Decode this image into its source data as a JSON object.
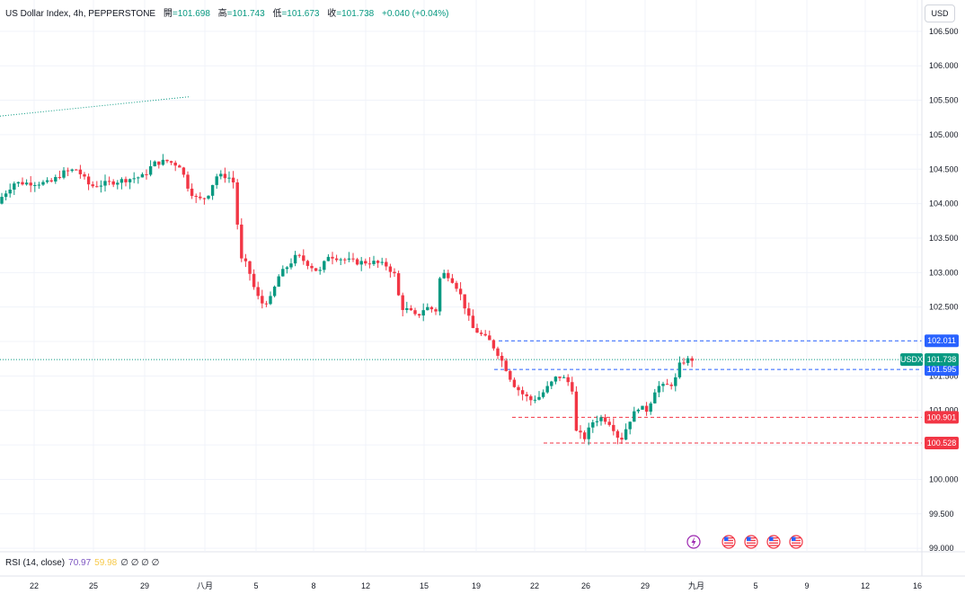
{
  "header": {
    "symbol": "US Dollar Index, 4h, PEPPERSTONE",
    "open_label": "開",
    "open": "=101.698",
    "high_label": "高",
    "high": "=101.743",
    "low_label": "低",
    "low": "=101.673",
    "close_label": "收",
    "close": "=101.738",
    "change": "+0.040 (+0.04%)"
  },
  "currency_button": "USD",
  "rsi": {
    "label": "RSI (14, close)",
    "value1": "70.97",
    "value2": "59.98",
    "placeholders": "∅ ∅ ∅ ∅"
  },
  "colors": {
    "up": "#089981",
    "down": "#f23645",
    "blue": "#2962ff",
    "red_level": "#f23645",
    "grid": "#f0f3fa"
  },
  "chart_data": {
    "type": "candlestick",
    "timeframe": "4h",
    "ylim": [
      98.95,
      106.85
    ],
    "y_ticks": [
      "106.500",
      "106.000",
      "105.500",
      "105.000",
      "104.500",
      "104.000",
      "103.500",
      "103.000",
      "102.500",
      "102.000",
      "101.500",
      "101.000",
      "100.500",
      "100.000",
      "99.500",
      "99.000"
    ],
    "x_ticks": [
      "22",
      "25",
      "29",
      "八月",
      "5",
      "8",
      "12",
      "15",
      "19",
      "22",
      "26",
      "29",
      "九月",
      "5",
      "9",
      "12",
      "16"
    ],
    "price_line": {
      "label": "USDX",
      "value": "101.738"
    },
    "levels": [
      {
        "value": "102.011",
        "style": "blue"
      },
      {
        "value": "101.595",
        "style": "blue"
      },
      {
        "value": "100.901",
        "style": "red"
      },
      {
        "value": "100.528",
        "style": "red"
      }
    ],
    "trend_line": {
      "from": [
        0,
        105.27
      ],
      "to": [
        210,
        105.55
      ]
    },
    "anchors": [
      [
        0,
        104.0
      ],
      [
        20,
        104.3
      ],
      [
        40,
        104.3
      ],
      [
        60,
        104.3
      ],
      [
        75,
        104.45
      ],
      [
        90,
        104.5
      ],
      [
        105,
        104.25
      ],
      [
        125,
        104.3
      ],
      [
        145,
        104.35
      ],
      [
        165,
        104.4
      ],
      [
        175,
        104.58
      ],
      [
        190,
        104.62
      ],
      [
        205,
        104.55
      ],
      [
        215,
        104.2
      ],
      [
        225,
        104.05
      ],
      [
        235,
        104.1
      ],
      [
        245,
        104.4
      ],
      [
        258,
        104.4
      ],
      [
        265,
        104.3
      ],
      [
        272,
        103.2
      ],
      [
        280,
        103.1
      ],
      [
        288,
        102.75
      ],
      [
        295,
        102.55
      ],
      [
        305,
        102.6
      ],
      [
        315,
        102.95
      ],
      [
        325,
        103.1
      ],
      [
        335,
        103.25
      ],
      [
        345,
        103.15
      ],
      [
        360,
        103.0
      ],
      [
        370,
        103.25
      ],
      [
        385,
        103.2
      ],
      [
        400,
        103.15
      ],
      [
        420,
        103.15
      ],
      [
        435,
        103.1
      ],
      [
        445,
        102.95
      ],
      [
        450,
        102.5
      ],
      [
        460,
        102.45
      ],
      [
        468,
        102.35
      ],
      [
        478,
        102.5
      ],
      [
        490,
        102.45
      ],
      [
        495,
        103.0
      ],
      [
        505,
        102.95
      ],
      [
        515,
        102.75
      ],
      [
        522,
        102.5
      ],
      [
        530,
        102.2
      ],
      [
        540,
        102.1
      ],
      [
        550,
        102.0
      ],
      [
        560,
        101.8
      ],
      [
        568,
        101.6
      ],
      [
        575,
        101.4
      ],
      [
        585,
        101.25
      ],
      [
        595,
        101.15
      ],
      [
        605,
        101.2
      ],
      [
        615,
        101.35
      ],
      [
        625,
        101.5
      ],
      [
        635,
        101.45
      ],
      [
        642,
        101.3
      ],
      [
        645,
        100.7
      ],
      [
        655,
        100.6
      ],
      [
        665,
        100.85
      ],
      [
        675,
        100.9
      ],
      [
        685,
        100.8
      ],
      [
        695,
        100.55
      ],
      [
        705,
        100.85
      ],
      [
        715,
        101.05
      ],
      [
        725,
        101.0
      ],
      [
        735,
        101.35
      ],
      [
        745,
        101.35
      ],
      [
        755,
        101.4
      ],
      [
        762,
        101.7
      ],
      [
        772,
        101.74
      ]
    ]
  },
  "events": [
    "lightning-icon",
    "us-flag-icon",
    "us-flag-icon",
    "us-flag-icon",
    "us-flag-icon"
  ]
}
